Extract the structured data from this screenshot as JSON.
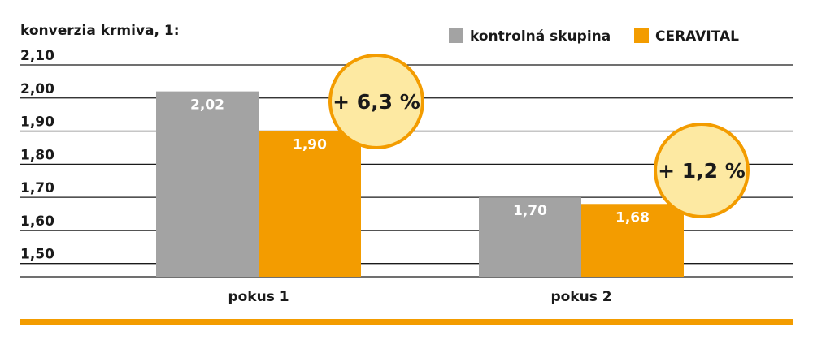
{
  "chart_data": {
    "type": "bar",
    "title": "konverzia krmiva, 1:",
    "categories": [
      "pokus 1",
      "pokus 2"
    ],
    "series": [
      {
        "name": "kontrolná skupina",
        "color": "#a3a3a3",
        "values": [
          2.02,
          1.7
        ],
        "value_labels": [
          "2,02",
          "1,70"
        ]
      },
      {
        "name": "CERAVITAL",
        "color": "#f39c00",
        "values": [
          1.9,
          1.68
        ],
        "value_labels": [
          "1,90",
          "1,68"
        ]
      }
    ],
    "annotations": [
      "+ 6,3 %",
      "+ 1,2 %"
    ],
    "ylim": [
      1.46,
      2.1
    ],
    "yticks": [
      {
        "value": 2.1,
        "label": "2,10"
      },
      {
        "value": 2.0,
        "label": "2,00"
      },
      {
        "value": 1.9,
        "label": "1,90"
      },
      {
        "value": 1.8,
        "label": "1,80"
      },
      {
        "value": 1.7,
        "label": "1,70"
      },
      {
        "value": 1.6,
        "label": "1,60"
      },
      {
        "value": 1.5,
        "label": "1,50"
      }
    ],
    "grid": true,
    "legend": "top-right"
  }
}
